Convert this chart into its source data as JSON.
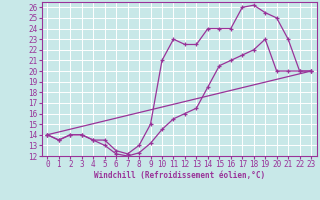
{
  "xlabel": "Windchill (Refroidissement éolien,°C)",
  "xlim": [
    -0.5,
    23.5
  ],
  "ylim": [
    12,
    26.5
  ],
  "yticks": [
    12,
    13,
    14,
    15,
    16,
    17,
    18,
    19,
    20,
    21,
    22,
    23,
    24,
    25,
    26
  ],
  "xticks": [
    0,
    1,
    2,
    3,
    4,
    5,
    6,
    7,
    8,
    9,
    10,
    11,
    12,
    13,
    14,
    15,
    16,
    17,
    18,
    19,
    20,
    21,
    22,
    23
  ],
  "bg_color": "#c8e8e8",
  "line_color": "#993399",
  "grid_color": "#ffffff",
  "line1_x": [
    0,
    1,
    2,
    3,
    4,
    5,
    6,
    7,
    8,
    9,
    10,
    11,
    12,
    13,
    14,
    15,
    16,
    17,
    18,
    19,
    20,
    21,
    22,
    23
  ],
  "line1_y": [
    14,
    13.5,
    14,
    14,
    13.5,
    13,
    12.2,
    12,
    12.3,
    13.2,
    14.5,
    15.5,
    16,
    16.5,
    18.5,
    20.5,
    21,
    21.5,
    22,
    23,
    20,
    20,
    20,
    20
  ],
  "line2_x": [
    0,
    1,
    2,
    3,
    4,
    5,
    6,
    7,
    8,
    9,
    10,
    11,
    12,
    13,
    14,
    15,
    16,
    17,
    18,
    19,
    20,
    21,
    22,
    23
  ],
  "line2_y": [
    14,
    13.5,
    14,
    14,
    13.5,
    13.5,
    12.5,
    12.2,
    13,
    15,
    21,
    23,
    22.5,
    22.5,
    24,
    24,
    24,
    26,
    26.2,
    25.5,
    25,
    23,
    20,
    20
  ],
  "line3_x": [
    0,
    23
  ],
  "line3_y": [
    14,
    20
  ]
}
